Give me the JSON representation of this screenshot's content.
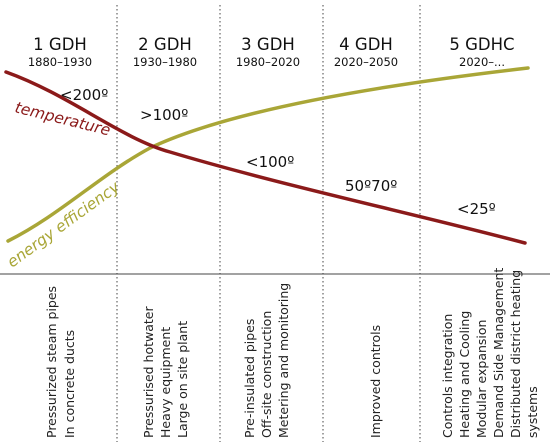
{
  "colors": {
    "temperature_curve": "#8b1a1a",
    "efficiency_curve": "#a9a637",
    "divider": "#444444",
    "text": "#111111"
  },
  "generations": [
    {
      "label": "1 GDH",
      "years": "1880–1930",
      "technologies": [
        "Pressurized steam pipes",
        "In concrete ducts"
      ]
    },
    {
      "label": "2 GDH",
      "years": "1930–1980",
      "technologies": [
        "Pressurised hotwater",
        "Heavy equipment",
        "Large on site plant"
      ]
    },
    {
      "label": "3 GDH",
      "years": "1980–2020",
      "technologies": [
        "Pre-insulated pipes",
        "Off-site construction",
        "Metering and monitoring"
      ]
    },
    {
      "label": "4 GDH",
      "years": "2020–2050",
      "technologies": [
        "Improved controls"
      ]
    },
    {
      "label": "5 GDHC",
      "years": "2020–...",
      "technologies": [
        "Controls integration",
        "Heating and Cooling",
        "Modular expansion",
        "Demand Side Management",
        "Distributed district heating systems"
      ]
    }
  ],
  "temperature_markers": [
    "<200º",
    ">100º",
    "<100º",
    "50º70º",
    "<25º"
  ],
  "curves": {
    "temperature_label": "temperature",
    "efficiency_label": "energy efficiency"
  }
}
